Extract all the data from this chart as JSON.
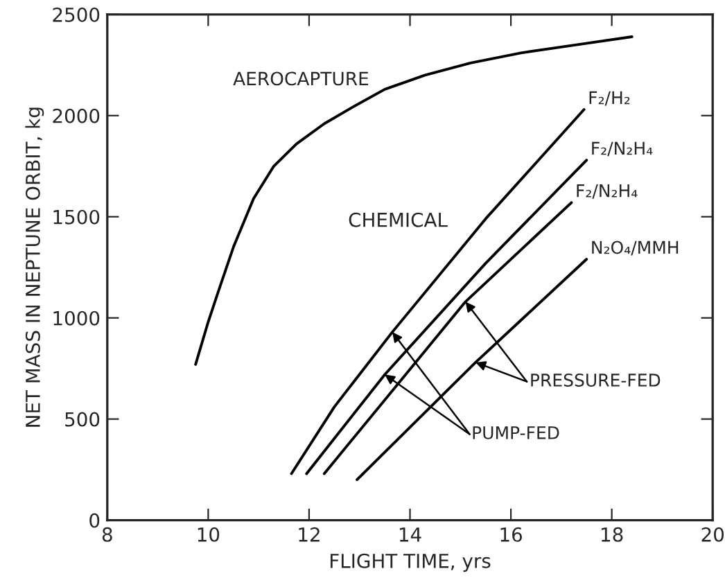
{
  "chart_data": {
    "type": "line",
    "xlabel": "FLIGHT TIME, yrs",
    "ylabel": "NET MASS IN NEPTUNE ORBIT, kg",
    "xlim": [
      8,
      20
    ],
    "xticks": [
      8,
      10,
      12,
      14,
      16,
      18,
      20
    ],
    "ylim": [
      0,
      2500
    ],
    "yticks": [
      0,
      500,
      1000,
      1500,
      2000,
      2500
    ],
    "grid": false,
    "legend": false,
    "marker": "none",
    "line_style": "solid",
    "series": [
      {
        "name": "AEROCAPTURE",
        "color": "#000000",
        "x": [
          9.75,
          10.0,
          10.2,
          10.5,
          10.9,
          11.3,
          11.75,
          12.3,
          12.85,
          13.5,
          14.3,
          15.2,
          16.2,
          17.3,
          18.4
        ],
        "values": [
          770,
          980,
          1130,
          1350,
          1590,
          1750,
          1860,
          1960,
          2040,
          2130,
          2200,
          2260,
          2310,
          2350,
          2390
        ]
      },
      {
        "name": "F₂/H₂",
        "color": "#000000",
        "x": [
          11.65,
          12.5,
          13.65,
          15.5,
          17.45
        ],
        "values": [
          230,
          560,
          930,
          1490,
          2030
        ]
      },
      {
        "name": "F₂/N₂H₄",
        "color": "#000000",
        "x": [
          11.95,
          13.5,
          15.5,
          17.5
        ],
        "values": [
          230,
          720,
          1270,
          1780
        ]
      },
      {
        "name": "F₂/N₂H₄",
        "color": "#000000",
        "x": [
          12.3,
          15.1,
          17.2
        ],
        "values": [
          230,
          1080,
          1570
        ]
      },
      {
        "name": "N₂O₄/MMH",
        "color": "#000000",
        "x": [
          12.95,
          15.3,
          17.5
        ],
        "values": [
          200,
          780,
          1290
        ]
      }
    ],
    "annotations": [
      "CHEMICAL",
      {
        "text": "PUMP-FED",
        "x": 13.5,
        "y": 720
      },
      {
        "text": "PRESSURE-FED",
        "x": 15.3,
        "y": 780
      }
    ]
  }
}
